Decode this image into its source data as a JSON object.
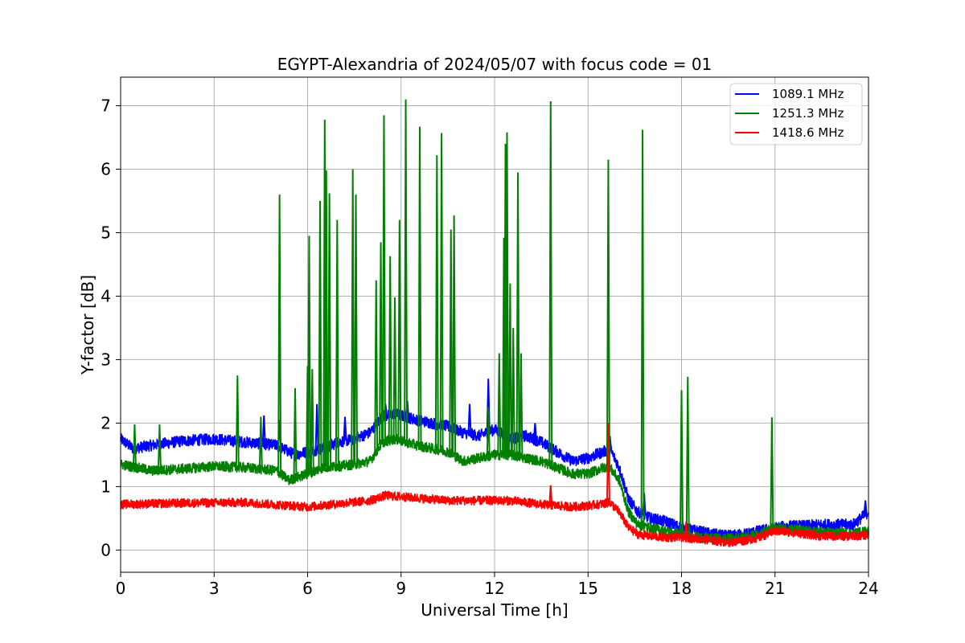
{
  "chart_data": {
    "type": "line",
    "title": "EGYPT-Alexandria of 2024/05/07 with focus code = 01",
    "xlabel": "Universal Time [h]",
    "ylabel": "Y-factor [dB]",
    "xlim": [
      0,
      24
    ],
    "ylim": [
      -0.35,
      7.45
    ],
    "xticks": [
      0,
      3,
      6,
      9,
      12,
      15,
      18,
      21,
      24
    ],
    "yticks": [
      0,
      1,
      2,
      3,
      4,
      5,
      6,
      7
    ],
    "grid": true,
    "legend_position": "top-right",
    "series": [
      {
        "name": "1089.1 MHz",
        "color": "#0000ff",
        "noise": 0.09,
        "x": [
          0,
          0.4,
          1,
          2,
          3,
          4,
          5,
          5.6,
          6,
          6.5,
          7,
          7.5,
          8,
          8.4,
          8.8,
          9.5,
          10,
          10.5,
          11,
          11.5,
          12,
          12.5,
          13,
          13.5,
          14,
          14.5,
          15,
          15.5,
          15.7,
          16,
          16.3,
          16.6,
          17,
          17.5,
          18,
          18.5,
          19,
          19.5,
          20,
          20.5,
          21,
          21.5,
          22,
          22.5,
          23,
          23.5,
          24
        ],
        "y": [
          1.75,
          1.6,
          1.65,
          1.72,
          1.75,
          1.7,
          1.65,
          1.5,
          1.55,
          1.6,
          1.7,
          1.75,
          1.85,
          2.1,
          2.15,
          2.05,
          2.0,
          1.95,
          1.85,
          1.8,
          1.9,
          1.75,
          1.8,
          1.7,
          1.55,
          1.4,
          1.45,
          1.55,
          1.6,
          1.3,
          0.8,
          0.6,
          0.5,
          0.45,
          0.35,
          0.3,
          0.25,
          0.22,
          0.25,
          0.3,
          0.35,
          0.38,
          0.38,
          0.4,
          0.4,
          0.4,
          0.6
        ],
        "spikes": [
          [
            4.6,
            2.12
          ],
          [
            5.1,
            2.05
          ],
          [
            6.3,
            2.3
          ],
          [
            7.2,
            2.1
          ],
          [
            8.5,
            2.3
          ],
          [
            9.2,
            2.35
          ],
          [
            11.2,
            2.3
          ],
          [
            11.8,
            2.7
          ],
          [
            13.3,
            2.0
          ],
          [
            15.7,
            1.8
          ],
          [
            16.8,
            0.9
          ],
          [
            23.9,
            0.78
          ]
        ]
      },
      {
        "name": "1251.3 MHz",
        "color": "#008000",
        "noise": 0.08,
        "x": [
          0,
          1,
          2,
          3,
          4,
          5,
          5.4,
          6,
          6.5,
          7,
          7.5,
          8,
          8.4,
          8.8,
          9.5,
          10,
          10.5,
          11,
          11.5,
          12,
          12.5,
          13,
          13.5,
          14,
          14.5,
          15,
          15.5,
          15.7,
          16,
          16.3,
          16.6,
          17,
          17.5,
          18,
          18.5,
          19,
          19.5,
          20,
          20.5,
          21,
          21.5,
          22,
          22.5,
          23,
          23.5,
          24
        ],
        "y": [
          1.35,
          1.25,
          1.28,
          1.32,
          1.3,
          1.25,
          1.1,
          1.2,
          1.3,
          1.32,
          1.35,
          1.4,
          1.7,
          1.75,
          1.65,
          1.6,
          1.55,
          1.4,
          1.45,
          1.5,
          1.5,
          1.45,
          1.4,
          1.3,
          1.2,
          1.2,
          1.3,
          1.3,
          1.1,
          0.6,
          0.4,
          0.35,
          0.3,
          0.25,
          0.2,
          0.18,
          0.18,
          0.2,
          0.25,
          0.35,
          0.33,
          0.3,
          0.28,
          0.27,
          0.26,
          0.3
        ],
        "spikes": [
          [
            0.45,
            1.98
          ],
          [
            1.25,
            1.98
          ],
          [
            3.75,
            2.75
          ],
          [
            4.5,
            2.1
          ],
          [
            5.1,
            5.6
          ],
          [
            5.6,
            2.55
          ],
          [
            6.0,
            2.9
          ],
          [
            6.05,
            4.95
          ],
          [
            6.15,
            2.85
          ],
          [
            6.4,
            5.5
          ],
          [
            6.55,
            6.78
          ],
          [
            6.6,
            5.98
          ],
          [
            6.7,
            5.62
          ],
          [
            6.95,
            5.2
          ],
          [
            7.45,
            6.0
          ],
          [
            7.55,
            5.6
          ],
          [
            8.2,
            4.25
          ],
          [
            8.35,
            4.85
          ],
          [
            8.45,
            6.85
          ],
          [
            8.65,
            4.63
          ],
          [
            8.8,
            3.98
          ],
          [
            8.95,
            5.2
          ],
          [
            9.15,
            7.1
          ],
          [
            9.6,
            6.67
          ],
          [
            10.15,
            6.22
          ],
          [
            10.3,
            6.57
          ],
          [
            10.6,
            5.05
          ],
          [
            10.7,
            5.27
          ],
          [
            11.8,
            2.25
          ],
          [
            12.15,
            3.1
          ],
          [
            12.3,
            4.92
          ],
          [
            12.35,
            6.4
          ],
          [
            12.4,
            6.58
          ],
          [
            12.5,
            4.2
          ],
          [
            12.6,
            3.5
          ],
          [
            12.75,
            5.95
          ],
          [
            12.85,
            3.1
          ],
          [
            13.8,
            7.07
          ],
          [
            15.65,
            6.15
          ],
          [
            16.75,
            6.62
          ],
          [
            18.0,
            2.52
          ],
          [
            18.2,
            2.73
          ],
          [
            20.9,
            2.09
          ]
        ]
      },
      {
        "name": "1418.6 MHz",
        "color": "#ff0000",
        "noise": 0.07,
        "x": [
          0,
          2,
          4,
          6,
          7,
          8,
          8.5,
          9.5,
          10.5,
          11.5,
          12.5,
          13.5,
          14.5,
          15,
          15.5,
          15.7,
          16,
          16.3,
          16.6,
          17,
          17.5,
          18,
          18.5,
          19,
          19.5,
          20,
          20.5,
          21,
          21.5,
          22,
          22.5,
          23,
          23.5,
          24
        ],
        "y": [
          0.72,
          0.74,
          0.75,
          0.68,
          0.73,
          0.78,
          0.86,
          0.82,
          0.78,
          0.78,
          0.78,
          0.72,
          0.68,
          0.7,
          0.73,
          0.75,
          0.6,
          0.35,
          0.25,
          0.22,
          0.2,
          0.2,
          0.18,
          0.15,
          0.12,
          0.15,
          0.2,
          0.3,
          0.28,
          0.25,
          0.22,
          0.22,
          0.22,
          0.24
        ],
        "spikes": [
          [
            13.8,
            1.02
          ],
          [
            15.65,
            2.0
          ],
          [
            18.15,
            0.45
          ]
        ]
      }
    ]
  }
}
